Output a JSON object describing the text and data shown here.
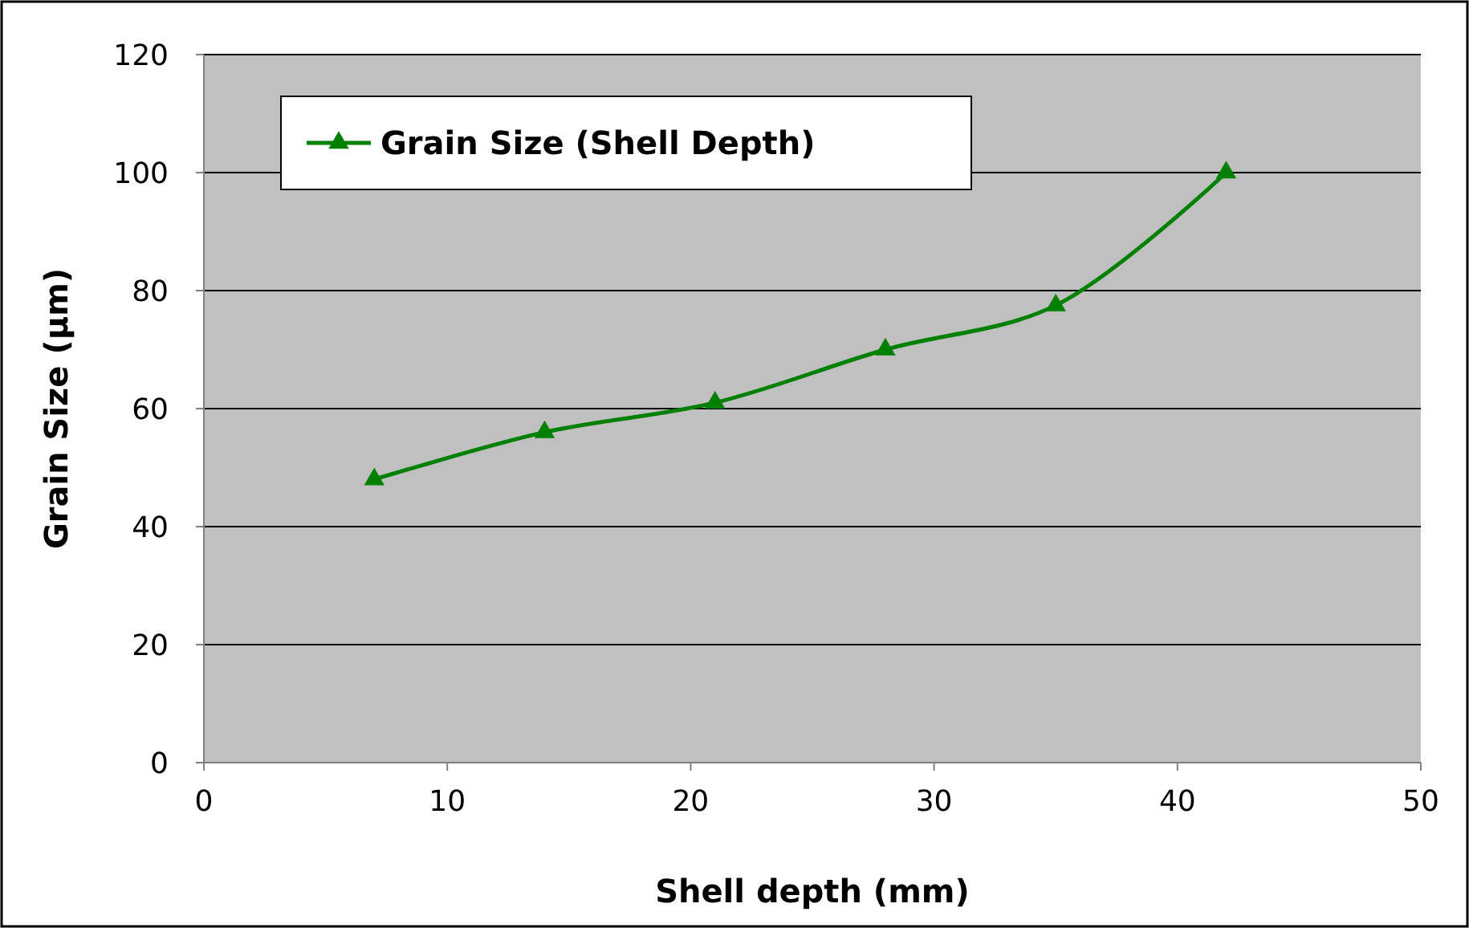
{
  "chart_data": {
    "type": "line",
    "xlabel": "Shell depth (mm)",
    "ylabel": "Grain Size (µm)",
    "x": [
      7,
      14,
      21,
      28,
      35,
      42
    ],
    "series": [
      {
        "name": "Grain Size (Shell Depth)",
        "color": "#008000",
        "values": [
          48,
          56,
          61,
          70,
          77.5,
          100
        ]
      }
    ],
    "xlim": [
      0,
      50
    ],
    "xticks": [
      0,
      10,
      20,
      30,
      40,
      50
    ],
    "ylim": [
      0,
      120
    ],
    "yticks": [
      0,
      20,
      40,
      60,
      80,
      100,
      120
    ],
    "grid": "y",
    "legend": "top left",
    "marker": "triangle",
    "line_style": "solid"
  }
}
